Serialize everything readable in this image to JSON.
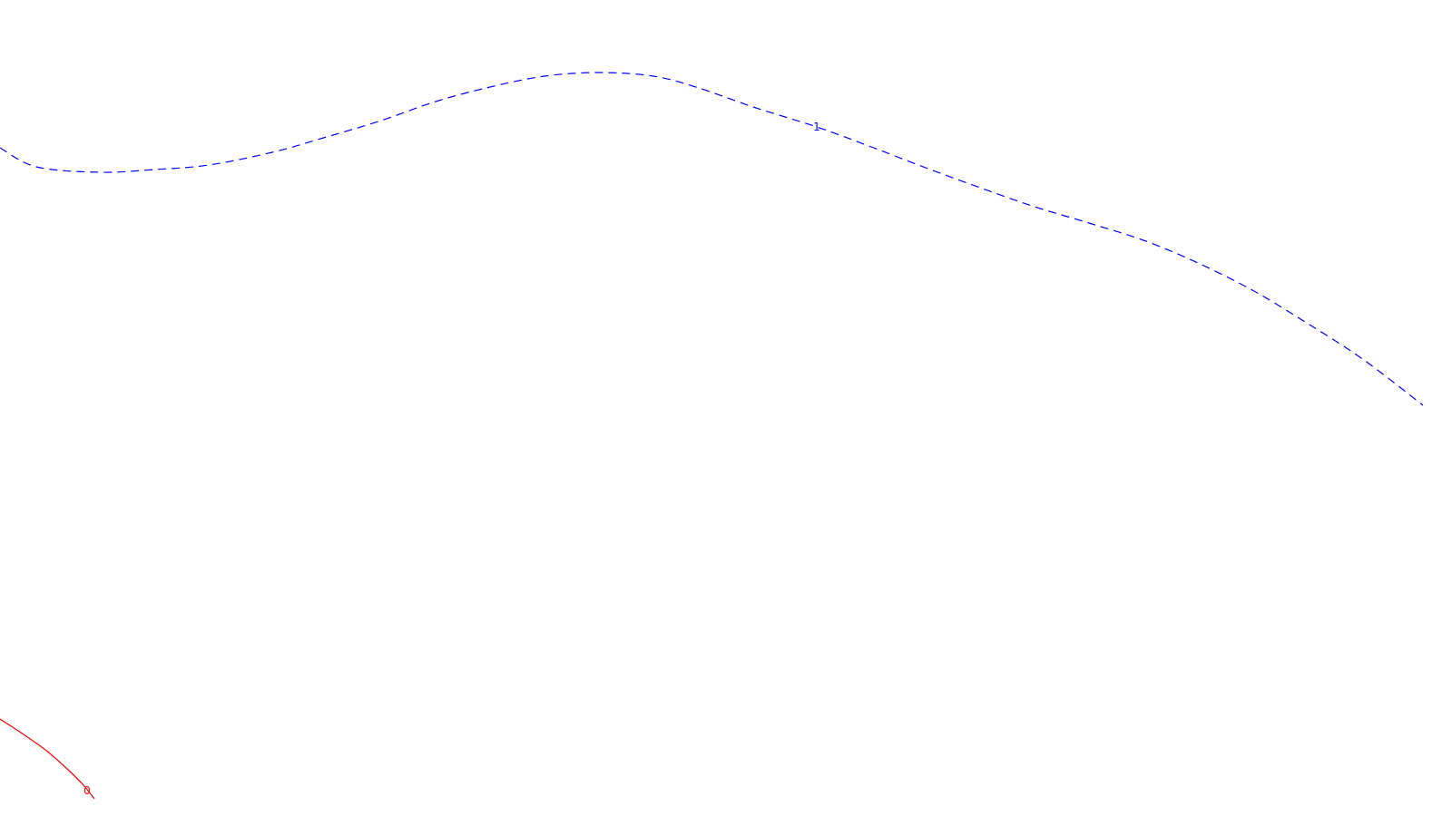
{
  "chart_data": {
    "type": "line",
    "title": "",
    "xlabel": "",
    "ylabel": "",
    "grid": false,
    "legend": "none",
    "contours": [
      {
        "level_label": "1",
        "color": "#0000ff",
        "style": "dashed",
        "points": [
          [
            0,
            163
          ],
          [
            40,
            184
          ],
          [
            110,
            190
          ],
          [
            170,
            187
          ],
          [
            230,
            182
          ],
          [
            300,
            168
          ],
          [
            360,
            151
          ],
          [
            420,
            133
          ],
          [
            480,
            112
          ],
          [
            540,
            96
          ],
          [
            600,
            84
          ],
          [
            660,
            80
          ],
          [
            720,
            84
          ],
          [
            770,
            97
          ],
          [
            830,
            118
          ],
          [
            900,
            140
          ],
          [
            960,
            162
          ],
          [
            1020,
            185
          ],
          [
            1080,
            207
          ],
          [
            1140,
            228
          ],
          [
            1200,
            246
          ],
          [
            1260,
            265
          ],
          [
            1320,
            290
          ],
          [
            1380,
            320
          ],
          [
            1430,
            350
          ],
          [
            1500,
            395
          ],
          [
            1568,
            447
          ]
        ],
        "label_at": [
          900,
          140
        ]
      },
      {
        "level_label": "0",
        "color": "#ff0000",
        "style": "solid",
        "points": [
          [
            0,
            793
          ],
          [
            20,
            806
          ],
          [
            50,
            827
          ],
          [
            75,
            849
          ],
          [
            92,
            866
          ],
          [
            104,
            881
          ]
        ],
        "label_at": [
          96,
          872
        ]
      }
    ]
  }
}
